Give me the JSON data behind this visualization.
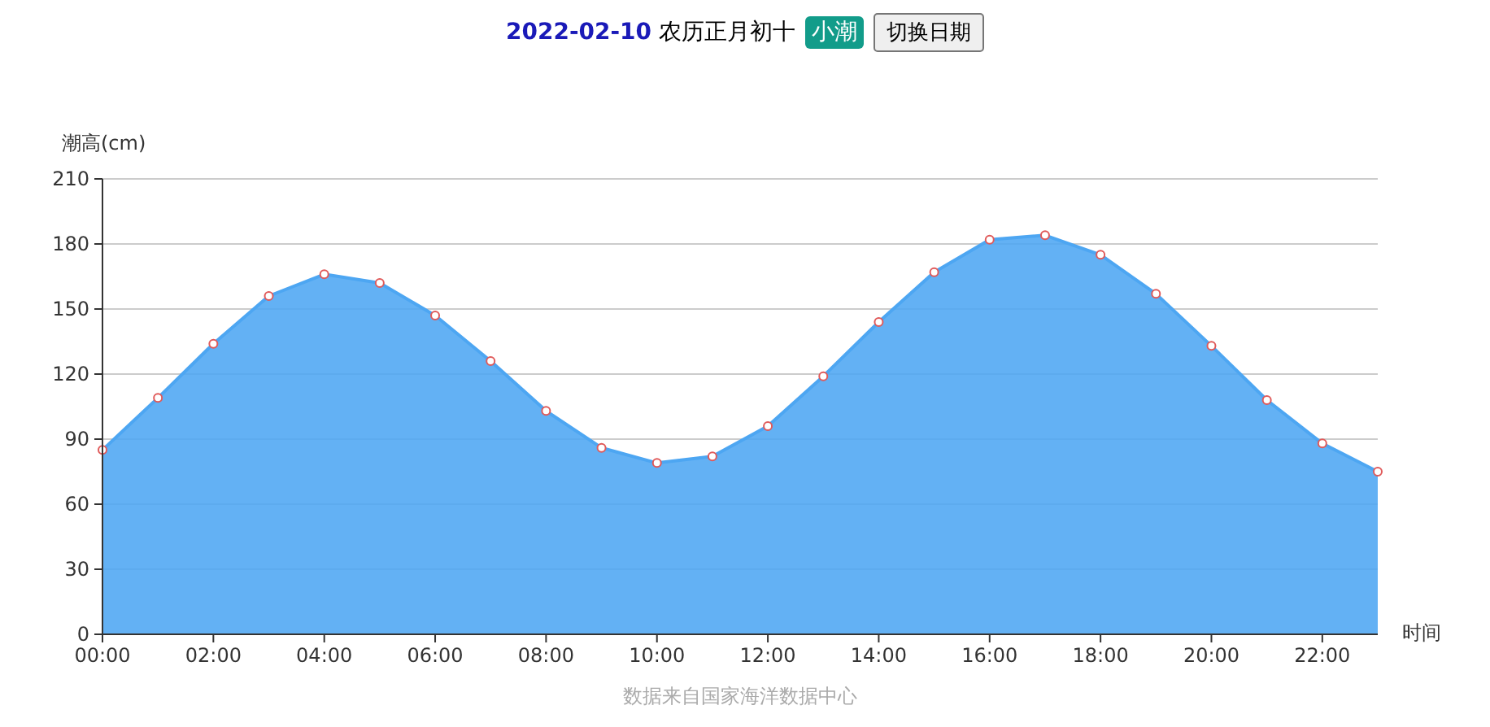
{
  "chart_data": {
    "type": "area",
    "title": "2022-02-10",
    "subtitle": "农历正月初十",
    "annotations": [
      "小潮",
      "切换日期",
      "数据来自国家海洋数据中心"
    ],
    "xlabel": "时间",
    "ylabel": "潮高(cm)",
    "x": [
      0,
      1,
      2,
      3,
      4,
      5,
      6,
      7,
      8,
      9,
      10,
      11,
      12,
      13,
      14,
      15,
      16,
      17,
      18,
      19,
      20,
      21,
      22,
      23
    ],
    "series": [
      {
        "color": "#4da6f2",
        "values": [
          85,
          109,
          134,
          156,
          166,
          162,
          147,
          126,
          103,
          86,
          79,
          82,
          96,
          119,
          144,
          167,
          182,
          184,
          175,
          157,
          133,
          108,
          88,
          75
        ]
      }
    ],
    "xlim": [
      0,
      23
    ],
    "xticks": [
      {
        "value": 0,
        "label": "00:00"
      },
      {
        "value": 2,
        "label": "02:00"
      },
      {
        "value": 4,
        "label": "04:00"
      },
      {
        "value": 6,
        "label": "06:00"
      },
      {
        "value": 8,
        "label": "08:00"
      },
      {
        "value": 10,
        "label": "10:00"
      },
      {
        "value": 12,
        "label": "12:00"
      },
      {
        "value": 14,
        "label": "14:00"
      },
      {
        "value": 16,
        "label": "16:00"
      },
      {
        "value": 18,
        "label": "18:00"
      },
      {
        "value": 20,
        "label": "20:00"
      },
      {
        "value": 22,
        "label": "22:00"
      }
    ],
    "ylim": [
      0,
      210
    ],
    "yticks": [
      0,
      30,
      60,
      90,
      120,
      150,
      180,
      210
    ],
    "grid": "y",
    "marker": "circle",
    "line_style": "solid"
  }
}
